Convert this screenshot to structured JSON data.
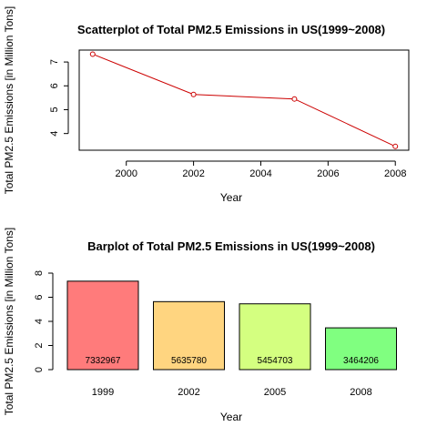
{
  "chart_data": [
    {
      "type": "line",
      "title": "Scatterplot of Total PM2.5 Emissions in US(1999~2008)",
      "xlabel": "Year",
      "ylabel": "Total PM2.5 Emissions [in Million Tons]",
      "x": [
        1999,
        2002,
        2005,
        2008
      ],
      "series": [
        {
          "values": [
            7.33,
            5.64,
            5.45,
            3.46
          ],
          "color": "#cc0000"
        }
      ],
      "xlim": [
        1998.6,
        2008.4
      ],
      "ylim": [
        3.3,
        7.5
      ],
      "xticks": [
        "2000",
        "2002",
        "2004",
        "2006",
        "2008"
      ],
      "yticks": [
        "4",
        "5",
        "6",
        "7"
      ],
      "grid": false
    },
    {
      "type": "bar",
      "title": "Barplot of Total PM2.5 Emissions in US(1999~2008)",
      "xlabel": "Year",
      "ylabel": "Total PM2.5 Emissions [in Million Tons]",
      "categories": [
        "1999",
        "2002",
        "2005",
        "2008"
      ],
      "values": [
        7.332967,
        5.63578,
        5.454703,
        3.464206
      ],
      "bar_labels": [
        "7332967",
        "5635780",
        "5454703",
        "3464206"
      ],
      "colors": [
        "#ff7b7b",
        "#ffd580",
        "#d4ff80",
        "#80ff80"
      ],
      "ylim": [
        0,
        8
      ],
      "yticks": [
        "0",
        "2",
        "4",
        "6",
        "8"
      ],
      "grid": false
    }
  ]
}
